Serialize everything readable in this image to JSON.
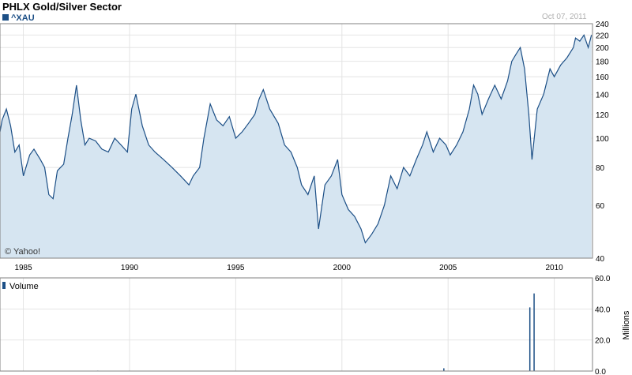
{
  "title": "PHLX Gold/Silver Sector",
  "date": "Oct 07, 2011",
  "watermark": "© Yahoo!",
  "colors": {
    "line": "#1c4f86",
    "fill": "#d6e5f1",
    "grid": "#e4e4e4",
    "axis": "#808080",
    "volume": "#1c4f86"
  },
  "chart_data": [
    {
      "type": "area",
      "legend": "^XAU",
      "yscale": "log",
      "ylim": [
        40,
        240
      ],
      "yticks": [
        40,
        60,
        80,
        100,
        120,
        140,
        160,
        180,
        200,
        220,
        240
      ],
      "xlim": [
        1983.9,
        2011.8
      ],
      "xticks": [
        1985,
        1990,
        1995,
        2000,
        2005,
        2010
      ],
      "grid": true,
      "series": [
        {
          "name": "^XAU",
          "x": [
            1983.9,
            1984.0,
            1984.2,
            1984.4,
            1984.6,
            1984.8,
            1985.0,
            1985.3,
            1985.5,
            1985.8,
            1986.0,
            1986.2,
            1986.4,
            1986.6,
            1986.9,
            1987.1,
            1987.3,
            1987.5,
            1987.7,
            1987.9,
            1988.1,
            1988.4,
            1988.7,
            1989.0,
            1989.3,
            1989.6,
            1989.9,
            1990.1,
            1990.3,
            1990.6,
            1990.9,
            1991.2,
            1991.6,
            1992.0,
            1992.4,
            1992.8,
            1993.0,
            1993.3,
            1993.5,
            1993.8,
            1994.1,
            1994.4,
            1994.7,
            1995.0,
            1995.3,
            1995.6,
            1995.9,
            1996.1,
            1996.3,
            1996.6,
            1997.0,
            1997.3,
            1997.6,
            1997.9,
            1998.1,
            1998.4,
            1998.7,
            1998.9,
            1999.2,
            1999.5,
            1999.8,
            2000.0,
            2000.3,
            2000.6,
            2000.9,
            2001.1,
            2001.4,
            2001.7,
            2002.0,
            2002.3,
            2002.6,
            2002.9,
            2003.2,
            2003.5,
            2003.8,
            2004.0,
            2004.3,
            2004.6,
            2004.9,
            2005.1,
            2005.4,
            2005.7,
            2006.0,
            2006.2,
            2006.4,
            2006.6,
            2006.9,
            2007.2,
            2007.5,
            2007.8,
            2008.0,
            2008.2,
            2008.4,
            2008.6,
            2008.8,
            2008.95,
            2009.2,
            2009.5,
            2009.8,
            2010.0,
            2010.3,
            2010.6,
            2010.9,
            2011.0,
            2011.2,
            2011.4,
            2011.6,
            2011.75
          ],
          "values": [
            105,
            115,
            125,
            110,
            90,
            95,
            75,
            88,
            92,
            85,
            80,
            65,
            63,
            78,
            82,
            100,
            120,
            150,
            115,
            95,
            100,
            98,
            92,
            90,
            100,
            95,
            90,
            125,
            140,
            110,
            95,
            90,
            85,
            80,
            75,
            70,
            75,
            80,
            100,
            130,
            115,
            110,
            118,
            100,
            105,
            112,
            120,
            135,
            145,
            125,
            112,
            95,
            90,
            80,
            70,
            65,
            75,
            50,
            70,
            75,
            85,
            65,
            58,
            55,
            50,
            45,
            48,
            52,
            60,
            75,
            68,
            80,
            75,
            85,
            95,
            105,
            90,
            100,
            95,
            88,
            95,
            105,
            125,
            150,
            140,
            120,
            135,
            150,
            135,
            155,
            180,
            190,
            200,
            170,
            120,
            85,
            125,
            140,
            170,
            160,
            175,
            185,
            200,
            215,
            210,
            220,
            200,
            220
          ],
          "ticks_note": ""
        }
      ]
    },
    {
      "type": "bar",
      "legend": "Volume",
      "ylabel": "Millions",
      "ylim": [
        0,
        60
      ],
      "yticks": [
        "0.0",
        "20.0",
        "40.0",
        "60.0"
      ],
      "x": [
        1988.5,
        2004.8,
        2008.85,
        2009.05
      ],
      "values": [
        0.3,
        1.8,
        41,
        50
      ]
    }
  ]
}
